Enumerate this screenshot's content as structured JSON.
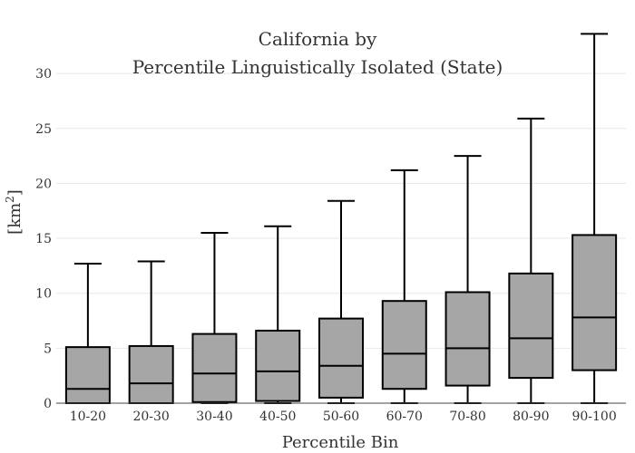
{
  "chart_data": {
    "type": "box",
    "title_lines": [
      "California  by",
      "Percentile Linguistically Isolated (State)"
    ],
    "xlabel": "Percentile Bin",
    "ylabel": "[km",
    "ylabel_sup": "2",
    "ylabel_close": "]",
    "ylim": [
      0,
      34
    ],
    "yticks": [
      0,
      5,
      10,
      15,
      20,
      25,
      30
    ],
    "grid": true,
    "box_color": "#a6a6a6",
    "line_color": "#000000",
    "categories": [
      "10-20",
      "20-30",
      "30-40",
      "40-50",
      "50-60",
      "60-70",
      "70-80",
      "80-90",
      "90-100"
    ],
    "boxes": [
      {
        "min": 0,
        "q1": 0.0,
        "median": 1.3,
        "q3": 5.1,
        "max": 12.7
      },
      {
        "min": 0,
        "q1": 0.0,
        "median": 1.8,
        "q3": 5.2,
        "max": 12.9
      },
      {
        "min": 0,
        "q1": 0.1,
        "median": 2.7,
        "q3": 6.3,
        "max": 15.5
      },
      {
        "min": 0,
        "q1": 0.2,
        "median": 2.9,
        "q3": 6.6,
        "max": 16.1
      },
      {
        "min": 0,
        "q1": 0.5,
        "median": 3.4,
        "q3": 7.7,
        "max": 18.4
      },
      {
        "min": 0,
        "q1": 1.3,
        "median": 4.5,
        "q3": 9.3,
        "max": 21.2
      },
      {
        "min": 0,
        "q1": 1.6,
        "median": 5.0,
        "q3": 10.1,
        "max": 22.5
      },
      {
        "min": 0,
        "q1": 2.3,
        "median": 5.9,
        "q3": 11.8,
        "max": 25.9
      },
      {
        "min": 0,
        "q1": 3.0,
        "median": 7.8,
        "q3": 15.3,
        "max": 33.6
      }
    ]
  }
}
